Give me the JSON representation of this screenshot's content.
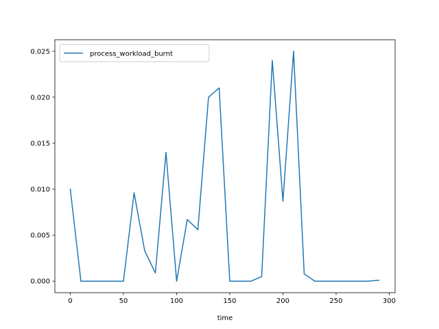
{
  "chart_data": {
    "type": "line",
    "title": "",
    "xlabel": "time",
    "ylabel": "",
    "xlim": [
      -14.5,
      305.5
    ],
    "ylim": [
      -0.00125,
      0.02625
    ],
    "x_ticks": [
      0,
      50,
      100,
      150,
      200,
      250,
      300
    ],
    "x_tick_labels": [
      "0",
      "50",
      "100",
      "150",
      "200",
      "250",
      "300"
    ],
    "y_ticks": [
      0.0,
      0.005,
      0.01,
      0.015,
      0.02,
      0.025
    ],
    "y_tick_labels": [
      "0.000",
      "0.005",
      "0.010",
      "0.015",
      "0.020",
      "0.025"
    ],
    "grid": false,
    "legend_position": "top-left",
    "series": [
      {
        "name": "process_workload_burnt",
        "color": "#1f77b4",
        "x": [
          0,
          10,
          20,
          30,
          40,
          50,
          60,
          70,
          80,
          90,
          100,
          110,
          120,
          130,
          140,
          150,
          160,
          170,
          180,
          190,
          200,
          210,
          220,
          230,
          240,
          250,
          260,
          270,
          280,
          290
        ],
        "y": [
          0.01,
          0.0,
          0.0,
          0.0,
          0.0,
          0.0,
          0.0096,
          0.0033,
          0.0009,
          0.014,
          0.0,
          0.0067,
          0.0056,
          0.02,
          0.021,
          0.0,
          0.0,
          0.0,
          0.0005,
          0.024,
          0.0087,
          0.025,
          0.0008,
          0.0,
          0.0,
          0.0,
          0.0,
          0.0,
          0.0,
          0.0001
        ]
      }
    ]
  }
}
